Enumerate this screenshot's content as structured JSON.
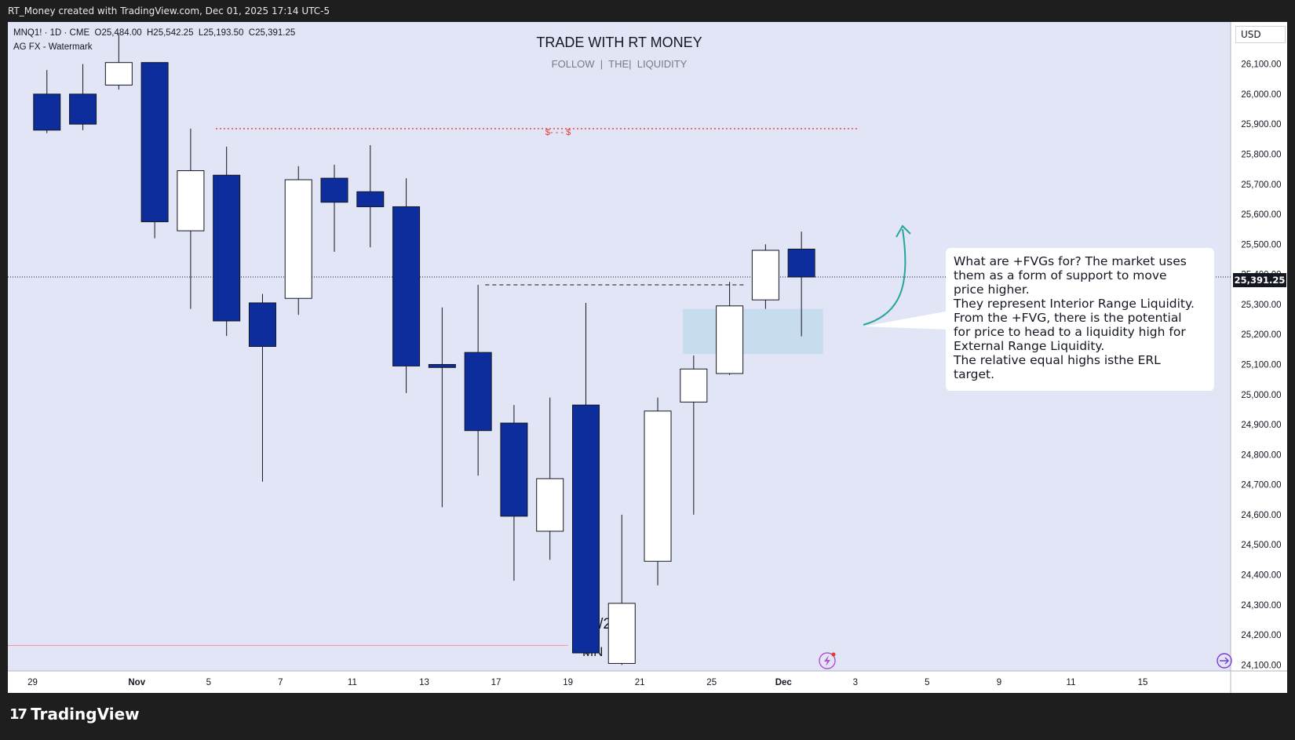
{
  "header": {
    "attribution": "RT_Money created with TradingView.com, Dec 01, 2025 17:14 UTC-5",
    "symbol_line": "MNQ1! · 1D · CME  O25,484.00  H25,542.25  L25,193.50  C25,391.25",
    "indicator_line": "AG FX - Watermark"
  },
  "watermark": {
    "title": "TRADE WITH RT MONEY",
    "subtitle": "FOLLOW  |  THE|  LIQUIDITY",
    "bottom_date": "1/  /20",
    "bottom_symbol": "MN"
  },
  "price_scale": {
    "currency": "USD",
    "last_price": "25,391.25"
  },
  "liquidity_label": "$- - - $",
  "annotation": {
    "lines": [
      "What are +FVGs for?  The market uses",
      "them as a form of support to move",
      "price higher.",
      "They represent Interior Range Liquidity.",
      "From the +FVG, there is the potential",
      "for price to head to a liquidity high for",
      "External Range Liquidity.",
      "The relative equal highs isthe ERL",
      "target."
    ]
  },
  "footer": {
    "brand": "TradingView"
  },
  "colors": {
    "background": "#e1e5f5",
    "bear_body": "#0d2d9c",
    "bull_body": "#ffffff",
    "wick": "#131722",
    "fvg_box": "#c5daf0",
    "liquidity_line": "#e53935",
    "arrow": "#26a69a"
  },
  "chart_data": {
    "type": "candlestick",
    "symbol": "MNQ1!",
    "interval": "1D",
    "ylim": [
      24080,
      26240
    ],
    "y_ticks": [
      24100,
      24200,
      24300,
      24400,
      24500,
      24600,
      24700,
      24800,
      24900,
      25000,
      25100,
      25200,
      25300,
      25400,
      25500,
      25600,
      25700,
      25800,
      25900,
      26000,
      26100
    ],
    "x_tick_labels": [
      "29",
      "Nov",
      "5",
      "7",
      "11",
      "13",
      "17",
      "19",
      "21",
      "25",
      "Dec",
      "3",
      "5",
      "9",
      "11",
      "15"
    ],
    "candles": [
      {
        "o": 26000,
        "h": 26080,
        "l": 25870,
        "c": 25880
      },
      {
        "o": 26000,
        "h": 26100,
        "l": 25880,
        "c": 25900
      },
      {
        "o": 26030,
        "h": 26200,
        "l": 26015,
        "c": 26105
      },
      {
        "o": 26105,
        "h": 26105,
        "l": 25520,
        "c": 25575
      },
      {
        "o": 25545,
        "h": 25885,
        "l": 25285,
        "c": 25745
      },
      {
        "o": 25730,
        "h": 25825,
        "l": 25195,
        "c": 25245
      },
      {
        "o": 25305,
        "h": 25335,
        "l": 24710,
        "c": 25160
      },
      {
        "o": 25320,
        "h": 25760,
        "l": 25265,
        "c": 25715
      },
      {
        "o": 25720,
        "h": 25765,
        "l": 25475,
        "c": 25640
      },
      {
        "o": 25675,
        "h": 25830,
        "l": 25490,
        "c": 25625
      },
      {
        "o": 25625,
        "h": 25720,
        "l": 25005,
        "c": 25095
      },
      {
        "o": 25100,
        "h": 25290,
        "l": 24625,
        "c": 25090
      },
      {
        "o": 25140,
        "h": 25365,
        "l": 24730,
        "c": 24880
      },
      {
        "o": 24905,
        "h": 24965,
        "l": 24380,
        "c": 24595
      },
      {
        "o": 24545,
        "h": 24990,
        "l": 24450,
        "c": 24720
      },
      {
        "o": 24965,
        "h": 25305,
        "l": 24135,
        "c": 24140
      },
      {
        "o": 24105,
        "h": 24600,
        "l": 24100,
        "c": 24305
      },
      {
        "o": 24445,
        "h": 24990,
        "l": 24365,
        "c": 24945
      },
      {
        "o": 24975,
        "h": 25130,
        "l": 24600,
        "c": 25085
      },
      {
        "o": 25070,
        "h": 25375,
        "l": 25065,
        "c": 25295
      },
      {
        "o": 25315,
        "h": 25500,
        "l": 25285,
        "c": 25480
      },
      {
        "o": 25484,
        "h": 25542.25,
        "l": 25193.5,
        "c": 25391.25
      }
    ],
    "levels": {
      "relative_equal_highs": 25885,
      "swing_high_dashed": 25365,
      "last_price": 25391.25
    },
    "fvg": {
      "top": 25285,
      "bottom": 25135
    }
  }
}
